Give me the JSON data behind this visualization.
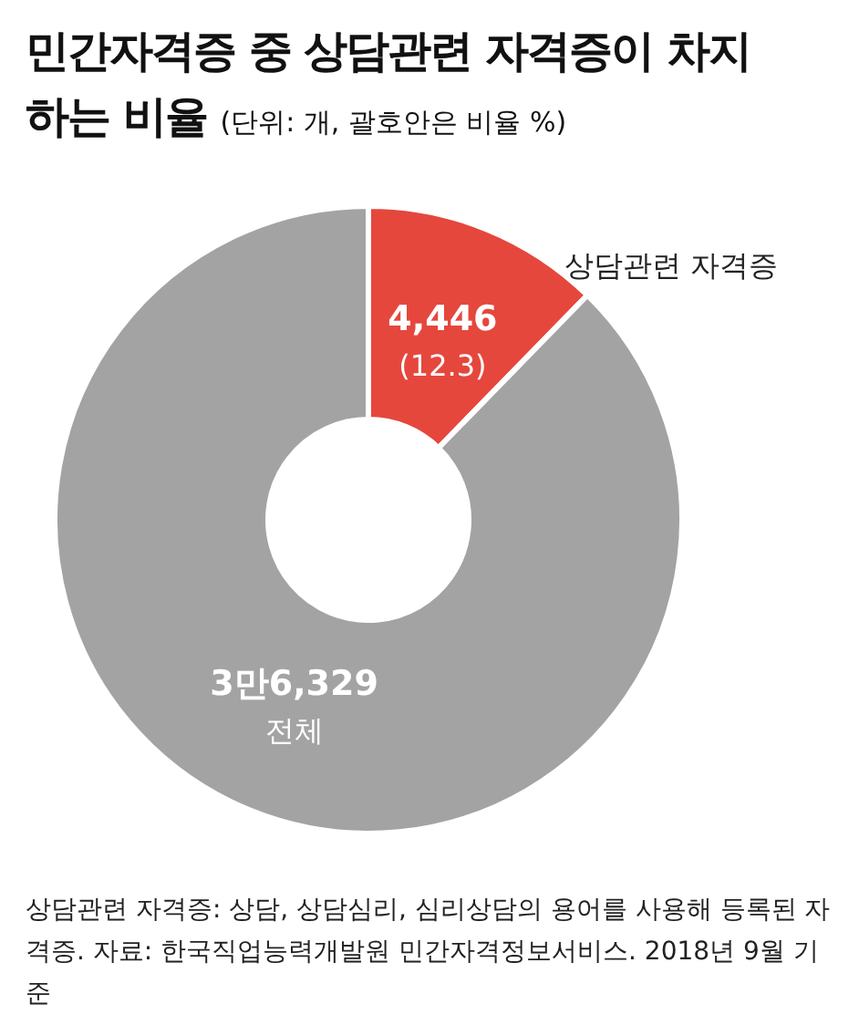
{
  "chart_data": {
    "type": "donut",
    "title": "민간자격증 중 상담관련 자격증이 차지하는 비율",
    "subtitle": "(단위: 개, 괄호안은 비율 %)",
    "categories": [
      "상담관련 자격증",
      "전체"
    ],
    "values": [
      12.3,
      87.7
    ],
    "colors": [
      "#e5473d",
      "#a3a3a3"
    ],
    "value_labels": [
      "(12.3)",
      null
    ],
    "annotations": [
      {
        "text": "4,446",
        "x": "상담관련 자격증"
      },
      {
        "text": "3만6,329",
        "x": "전체"
      },
      "상담관련 자격증: 상담, 상담심리, 심리상담의 용어를 사용해 등록된 자격증. 자료: 한국직업능력개발원 민간자격정보서비스. 2018년 9월 기준"
    ]
  }
}
